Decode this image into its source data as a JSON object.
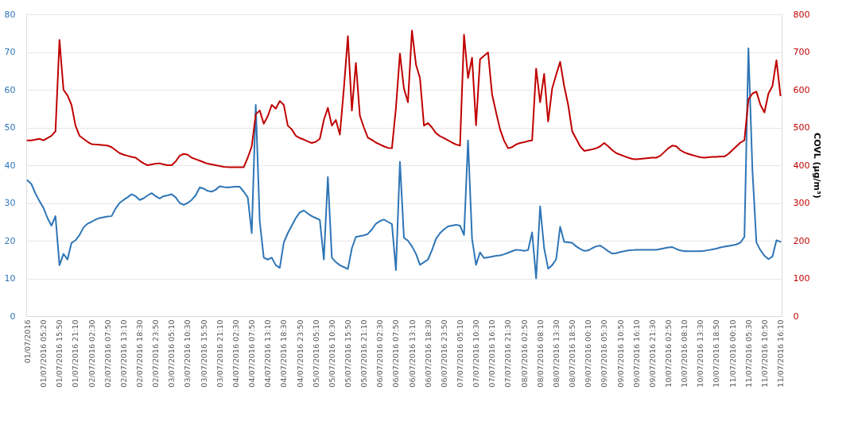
{
  "chart_data": {
    "type": "line",
    "y2label": "COVL (µg/m³)",
    "grid": "y",
    "categories": [
      "01/07/2016",
      null,
      null,
      null,
      "01/07/2016 05:20",
      null,
      null,
      null,
      "01/07/2016 15:50",
      null,
      null,
      null,
      "01/07/2016 21:10",
      null,
      null,
      null,
      "02/07/2016 02:30",
      null,
      null,
      null,
      "02/07/2016 07:50",
      null,
      null,
      null,
      "02/07/2016 13:10",
      null,
      null,
      null,
      "02/07/2016 18:30",
      null,
      null,
      null,
      "02/07/2016 23:50",
      null,
      null,
      null,
      "03/07/2016 05:10",
      null,
      null,
      null,
      "03/07/2016 10:30",
      null,
      null,
      null,
      "03/07/2016 15:50",
      null,
      null,
      null,
      "03/07/2016 21:10",
      null,
      null,
      null,
      "04/07/2016 02:30",
      null,
      null,
      null,
      "04/07/2016 07:50",
      null,
      null,
      null,
      "04/07/2016 13:10",
      null,
      null,
      null,
      "04/07/2016 18:30",
      null,
      null,
      null,
      "04/07/2016 23:50",
      null,
      null,
      null,
      "05/07/2016 05:10",
      null,
      null,
      null,
      "05/07/2016 10:30",
      null,
      null,
      null,
      "05/07/2016 15:50",
      null,
      null,
      null,
      "05/07/2016 21:10",
      null,
      null,
      null,
      "06/07/2016 02:30",
      null,
      null,
      null,
      "06/07/2016 07:50",
      null,
      null,
      null,
      "06/07/2016 13:10",
      null,
      null,
      null,
      "06/07/2016 18:30",
      null,
      null,
      null,
      "06/07/2016 23:50",
      null,
      null,
      null,
      "07/07/2016 05:10",
      null,
      null,
      null,
      "07/07/2016 10:30",
      null,
      null,
      null,
      "07/07/2016 16:10",
      null,
      null,
      null,
      "07/07/2016 21:30",
      null,
      null,
      null,
      "08/07/2016 02:50",
      null,
      null,
      null,
      "08/07/2016 08:10",
      null,
      null,
      null,
      "08/07/2016 13:30",
      null,
      null,
      null,
      "08/07/2016 18:50",
      null,
      null,
      null,
      "09/07/2016 00:10",
      null,
      null,
      null,
      "09/07/2016 05:30",
      null,
      null,
      null,
      "09/07/2016 10:50",
      null,
      null,
      null,
      "09/07/2016 16:10",
      null,
      null,
      null,
      "09/07/2016 21:30",
      null,
      null,
      null,
      "10/07/2016 02:50",
      null,
      null,
      null,
      "10/07/2016 08:10",
      null,
      null,
      null,
      "10/07/2016 13:30",
      null,
      null,
      null,
      "10/07/2016 18:50",
      null,
      null,
      null,
      "11/07/2016 00:10",
      null,
      null,
      null,
      "11/07/2016 05:30",
      null,
      null,
      null,
      "11/07/2016 10:50",
      null,
      null,
      null,
      "11/07/2016 16:10"
    ],
    "ylim": [
      0,
      80
    ],
    "yticks": [
      0,
      10,
      20,
      30,
      40,
      50,
      60,
      70,
      80
    ],
    "y2lim": [
      0,
      800
    ],
    "y2ticks": [
      0,
      100,
      200,
      300,
      400,
      500,
      600,
      700,
      800
    ],
    "series": [
      {
        "color": "#2e75b6",
        "axis": "y",
        "values": [
          36.0,
          35.0,
          32.5,
          30.5,
          28.7,
          26.0,
          24.0,
          26.5,
          13.5,
          16.5,
          15.0,
          19.4,
          20.1,
          21.5,
          23.5,
          24.5,
          25.0,
          25.6,
          26.0,
          26.2,
          26.4,
          26.5,
          28.5,
          30.0,
          30.8,
          31.5,
          32.3,
          31.8,
          30.8,
          31.2,
          32.0,
          32.6,
          31.8,
          31.2,
          31.8,
          32.0,
          32.3,
          31.5,
          30.0,
          29.5,
          30.0,
          30.8,
          32.0,
          34.1,
          33.8,
          33.2,
          33.0,
          33.5,
          34.4,
          34.2,
          34.1,
          34.2,
          34.3,
          34.3,
          33.0,
          31.5,
          22.0,
          56.0,
          25.1,
          15.5,
          15.0,
          15.5,
          13.5,
          12.8,
          19.5,
          22.0,
          24.0,
          26.0,
          27.5,
          28.0,
          27.2,
          26.5,
          26.0,
          25.5,
          15.0,
          36.9,
          15.5,
          14.3,
          13.5,
          13.0,
          12.5,
          18.0,
          21.0,
          21.2,
          21.4,
          21.8,
          23.0,
          24.5,
          25.2,
          25.6,
          25.0,
          24.4,
          12.2,
          40.9,
          20.8,
          20.0,
          18.5,
          16.5,
          13.6,
          14.3,
          15.0,
          17.5,
          20.5,
          22.0,
          23.0,
          23.8,
          24.0,
          24.2,
          24.0,
          21.5,
          46.6,
          20.5,
          13.6,
          16.9,
          15.4,
          15.6,
          15.8,
          16.0,
          16.1,
          16.4,
          16.8,
          17.2,
          17.6,
          17.5,
          17.3,
          17.5,
          22.2,
          10.0,
          29.1,
          18.0,
          12.6,
          13.5,
          15.1,
          23.7,
          19.7,
          19.6,
          19.4,
          18.5,
          17.8,
          17.3,
          17.4,
          18.0,
          18.5,
          18.7,
          18.0,
          17.2,
          16.6,
          16.7,
          17.0,
          17.2,
          17.4,
          17.5,
          17.6,
          17.6,
          17.6,
          17.6,
          17.6,
          17.6,
          17.8,
          18.0,
          18.2,
          18.3,
          17.8,
          17.4,
          17.2,
          17.2,
          17.2,
          17.2,
          17.2,
          17.3,
          17.5,
          17.7,
          17.9,
          18.2,
          18.4,
          18.6,
          18.8,
          19.0,
          19.5,
          21.0,
          71.0,
          38.7,
          19.5,
          17.5,
          16.0,
          15.1,
          15.8,
          20.1,
          19.7
        ]
      },
      {
        "color": "#c00000",
        "axis": "y2",
        "values": [
          466,
          466,
          468,
          470,
          466,
          472,
          478,
          490,
          732,
          600,
          585,
          560,
          505,
          478,
          470,
          462,
          456,
          455,
          454,
          453,
          452,
          448,
          440,
          432,
          428,
          425,
          422,
          420,
          412,
          405,
          400,
          402,
          404,
          405,
          402,
          400,
          400,
          410,
          425,
          430,
          428,
          420,
          416,
          412,
          408,
          404,
          402,
          400,
          398,
          396,
          395,
          395,
          395,
          395,
          395,
          420,
          450,
          535,
          545,
          510,
          530,
          560,
          550,
          570,
          560,
          505,
          495,
          478,
          472,
          468,
          463,
          459,
          462,
          470,
          520,
          552,
          505,
          520,
          481,
          603,
          742,
          545,
          671,
          531,
          500,
          473,
          467,
          460,
          455,
          450,
          446,
          445,
          552,
          696,
          603,
          567,
          757,
          667,
          631,
          505,
          512,
          500,
          485,
          477,
          472,
          466,
          460,
          455,
          452,
          746,
          631,
          685,
          506,
          681,
          690,
          699,
          588,
          540,
          495,
          465,
          445,
          448,
          455,
          459,
          461,
          464,
          466,
          656,
          567,
          642,
          516,
          603,
          640,
          674,
          610,
          560,
          490,
          470,
          450,
          438,
          440,
          442,
          445,
          450,
          459,
          450,
          440,
          432,
          428,
          424,
          420,
          417,
          416,
          417,
          418,
          419,
          420,
          420,
          425,
          435,
          445,
          452,
          450,
          440,
          434,
          430,
          427,
          424,
          421,
          420,
          421,
          422,
          422,
          423,
          423,
          430,
          440,
          450,
          460,
          466,
          574,
          590,
          595,
          560,
          540,
          590,
          610,
          678,
          585
        ]
      }
    ]
  }
}
